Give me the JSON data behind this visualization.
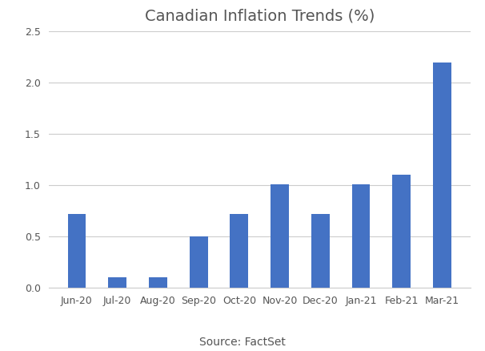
{
  "title": "Canadian Inflation Trends (%)",
  "source_label": "Source: FactSet",
  "categories": [
    "Jun-20",
    "Jul-20",
    "Aug-20",
    "Sep-20",
    "Oct-20",
    "Nov-20",
    "Dec-20",
    "Jan-21",
    "Feb-21",
    "Mar-21"
  ],
  "values": [
    0.72,
    0.1,
    0.1,
    0.5,
    0.72,
    1.01,
    0.72,
    1.01,
    1.1,
    2.2
  ],
  "bar_color": "#4472C4",
  "ylim": [
    0,
    2.5
  ],
  "yticks": [
    0,
    0.5,
    1.0,
    1.5,
    2.0,
    2.5
  ],
  "background_color": "#ffffff",
  "title_fontsize": 14,
  "source_fontsize": 10,
  "tick_fontsize": 9,
  "bar_width": 0.45,
  "title_color": "#555555",
  "tick_color": "#555555",
  "grid_color": "#cccccc",
  "figure_width": 6.06,
  "figure_height": 4.38,
  "figure_dpi": 100
}
